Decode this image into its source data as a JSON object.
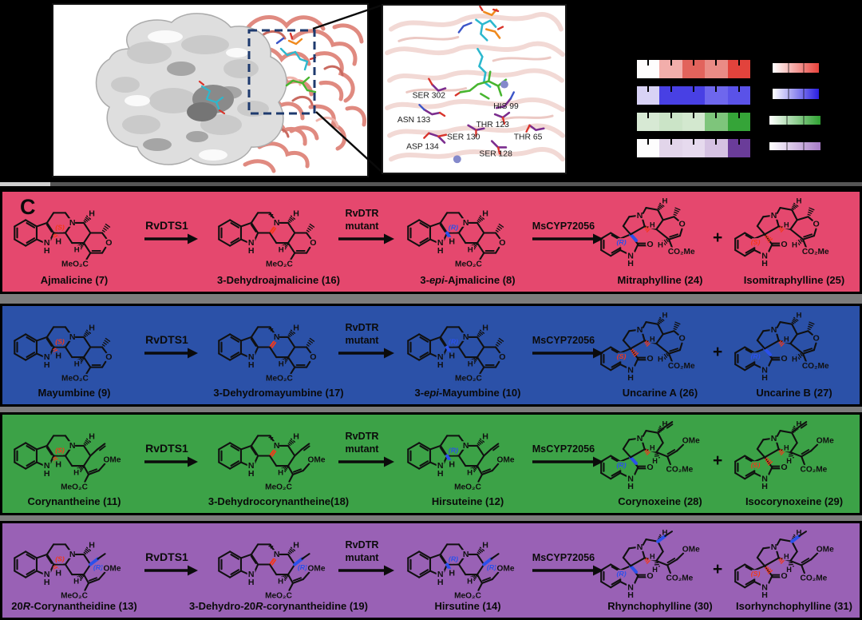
{
  "figure": {
    "panel_label": "C",
    "top": {
      "active_site": {
        "residues": [
          "SER 302",
          "HIS 99",
          "ASN 133",
          "THR 123",
          "SER 130",
          "THR 65",
          "ASP 134",
          "SER 128"
        ]
      },
      "heatmap": {
        "rows": [
          {
            "color_family": "red",
            "cells": [
              "#FEFDFD",
              "#F2AEAB",
              "#E2635C",
              "#EA8B85",
              "#E2433C"
            ]
          },
          {
            "color_family": "blue",
            "cells": [
              "#D8D2F5",
              "#4840E4",
              "#4840E4",
              "#6E67ED",
              "#5A52E8"
            ]
          },
          {
            "color_family": "green",
            "cells": [
              "#D7E9D4",
              "#CBE4C7",
              "#D3E8CF",
              "#7EC57B",
              "#35A438"
            ]
          },
          {
            "color_family": "purple",
            "cells": [
              "#FDFDFD",
              "#E2D5EA",
              "#E6DAEE",
              "#D5C2E2",
              "#6A3C99"
            ]
          }
        ]
      },
      "colorbars": [
        {
          "color_family": "red",
          "from": "#FFFFFF",
          "to": "#E8433C"
        },
        {
          "color_family": "blue",
          "from": "#FFFFFF",
          "to": "#2A1FE0"
        },
        {
          "color_family": "green",
          "from": "#FFFFFF",
          "to": "#2FA232"
        },
        {
          "color_family": "purple",
          "from": "#FFFFFF",
          "to": "#A87CC8"
        }
      ]
    },
    "chem_labels": {
      "n": "N",
      "h": "H",
      "o": "O",
      "ome": "OMe",
      "ester_left": "MeO₂C",
      "ester_right": "CO₂Me",
      "charge": "+"
    },
    "stereo_colors": {
      "red": "#F4381A",
      "blue": "#2B50EB"
    },
    "pathway": {
      "rows": [
        {
          "bg": "#E5486E",
          "scaffold": "heteroyohimbine",
          "plus": "+",
          "enzymes": [
            "RvDTS1",
            "RvDTR\nmutant",
            "MsCYP72056"
          ],
          "compounds": [
            {
              "name": "Ajmalicine (7)",
              "type": "substrate",
              "c3": {
                "text": "(S)",
                "style": "red"
              }
            },
            {
              "name": "3-Dehydroajmalicine (16)",
              "type": "iminium"
            },
            {
              "name": "3-epi-Ajmalicine (8)",
              "type": "substrate",
              "c3": {
                "text": "(R)",
                "style": "blue"
              }
            },
            {
              "name": "Mitraphylline (24)",
              "type": "spiro",
              "spiro": {
                "text": "(R)",
                "style": "blue"
              }
            },
            {
              "name": "Isomitraphylline (25)",
              "type": "spiro",
              "spiro": {
                "text": "(S)",
                "style": "red"
              }
            }
          ]
        },
        {
          "bg": "#2B51A8",
          "scaffold": "heteroyohimbine",
          "plus": "+",
          "enzymes": [
            "RvDTS1",
            "RvDTR\nmutant",
            "MsCYP72056"
          ],
          "compounds": [
            {
              "name": "Mayumbine (9)",
              "type": "substrate",
              "c3": {
                "text": "(S)",
                "style": "red"
              }
            },
            {
              "name": "3-Dehydromayumbine (17)",
              "type": "iminium"
            },
            {
              "name": "3-epi-Mayumbine (10)",
              "type": "substrate",
              "c3": {
                "text": "(R)",
                "style": "blue"
              }
            },
            {
              "name": "Uncarine A (26)",
              "type": "spiro",
              "spiro": {
                "text": "(S)",
                "style": "red"
              }
            },
            {
              "name": "Uncarine B (27)",
              "type": "spiro",
              "spiro": {
                "text": "(R)",
                "style": "blue"
              }
            }
          ]
        },
        {
          "bg": "#3CA247",
          "scaffold": "corynanthe-vinyl",
          "plus": "+",
          "enzymes": [
            "RvDTS1",
            "RvDTR\nmutant",
            "MsCYP72056"
          ],
          "compounds": [
            {
              "name": "Corynantheine (11)",
              "type": "substrate",
              "c3": {
                "text": "(S)",
                "style": "red"
              }
            },
            {
              "name": "3-Dehydrocorynantheine(18)",
              "type": "iminium"
            },
            {
              "name": "Hirsuteine (12)",
              "type": "substrate",
              "c3": {
                "text": "(R)",
                "style": "blue"
              }
            },
            {
              "name": "Corynoxeine (28)",
              "type": "spiro",
              "spiro": {
                "text": "(R)",
                "style": "blue"
              }
            },
            {
              "name": "Isocorynoxeine (29)",
              "type": "spiro",
              "spiro": {
                "text": "(S)",
                "style": "red"
              }
            }
          ]
        },
        {
          "bg": "#9961B5",
          "scaffold": "corynanthe-ethyl",
          "plus": "+",
          "enzymes": [
            "RvDTS1",
            "RvDTR\nmutant",
            "MsCYP72056"
          ],
          "compounds": [
            {
              "name": "20R-Corynantheidine (13)",
              "type": "substrate",
              "c3": {
                "text": "(S)",
                "style": "red"
              },
              "c20": {
                "text": "(R)",
                "style": "blue"
              }
            },
            {
              "name": "3-Dehydro-20R-corynantheidine (19)",
              "type": "iminium",
              "c20": {
                "text": "(R)",
                "style": "blue"
              }
            },
            {
              "name": "Hirsutine (14)",
              "type": "substrate",
              "c3": {
                "text": "(R)",
                "style": "blue"
              },
              "c20": {
                "text": "(R)",
                "style": "blue"
              }
            },
            {
              "name": "Rhynchophylline (30)",
              "type": "spiro",
              "spiro": {
                "text": "(R)",
                "style": "blue"
              }
            },
            {
              "name": "Isorhynchophylline (31)",
              "type": "spiro",
              "spiro": {
                "text": "(S)",
                "style": "red"
              }
            }
          ]
        }
      ]
    }
  }
}
